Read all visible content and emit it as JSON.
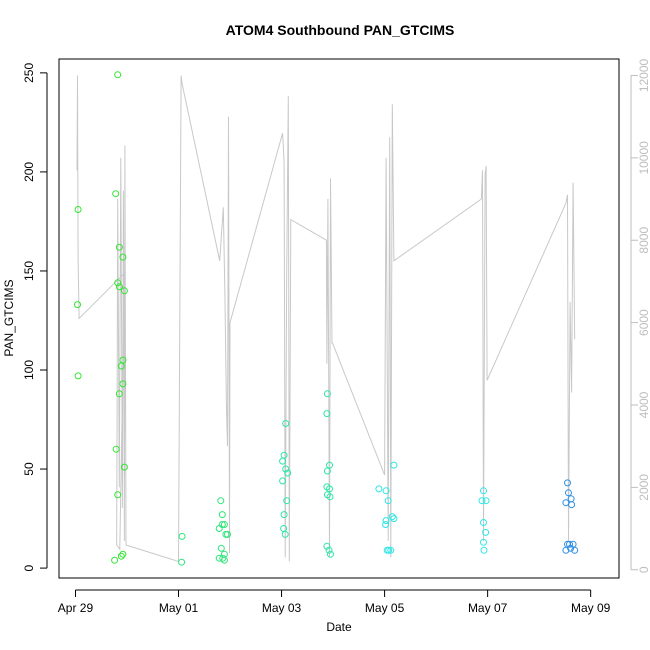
{
  "chart_data": {
    "type": "scatter",
    "title": "ATOM4 Southbound PAN_GTCIMS",
    "xlabel": "Date",
    "ylabel": "PAN_GTCIMS",
    "x_ticks": [
      {
        "label": "Apr 29",
        "day": 0
      },
      {
        "label": "May 01",
        "day": 2
      },
      {
        "label": "May 03",
        "day": 4
      },
      {
        "label": "May 05",
        "day": 6
      },
      {
        "label": "May 07",
        "day": 8
      },
      {
        "label": "May 09",
        "day": 10
      }
    ],
    "xlim_days": [
      -0.32,
      10.55
    ],
    "ylim": [
      -5,
      257
    ],
    "y_ticks": [
      0,
      50,
      100,
      150,
      200,
      250
    ],
    "y2lim": [
      -200,
      12400
    ],
    "y2_ticks": [
      0,
      2000,
      4000,
      6000,
      8000,
      10000,
      12000
    ],
    "y2_color": "#bebebe",
    "series": [
      {
        "color": "#32e632",
        "points": [
          [
            0.05,
            181
          ],
          [
            0.04,
            133
          ],
          [
            0.05,
            97
          ],
          [
            0.78,
            189
          ],
          [
            0.82,
            249
          ],
          [
            0.85,
            162
          ],
          [
            0.82,
            144
          ],
          [
            0.85,
            142
          ],
          [
            0.92,
            157
          ],
          [
            0.95,
            140
          ],
          [
            0.92,
            105
          ],
          [
            0.89,
            102
          ],
          [
            0.85,
            88
          ],
          [
            0.92,
            93
          ],
          [
            0.95,
            51
          ],
          [
            0.79,
            60
          ],
          [
            0.82,
            37
          ],
          [
            0.92,
            7
          ],
          [
            0.89,
            6
          ],
          [
            0.76,
            4
          ]
        ]
      },
      {
        "color": "#2ee67a",
        "points": [
          [
            2.07,
            16
          ],
          [
            2.06,
            3
          ],
          [
            2.82,
            34
          ],
          [
            2.79,
            20
          ],
          [
            2.85,
            22
          ],
          [
            2.89,
            22
          ],
          [
            2.92,
            17
          ],
          [
            2.85,
            27
          ],
          [
            2.89,
            7
          ],
          [
            2.83,
            10
          ],
          [
            2.86,
            5
          ],
          [
            2.89,
            4
          ],
          [
            2.95,
            17
          ],
          [
            2.79,
            5
          ]
        ]
      },
      {
        "color": "#2ee6a8",
        "points": [
          [
            4.08,
            73
          ],
          [
            4.05,
            57
          ],
          [
            4.02,
            54
          ],
          [
            4.08,
            50
          ],
          [
            4.12,
            48
          ],
          [
            4.02,
            44
          ],
          [
            4.1,
            34
          ],
          [
            4.05,
            27
          ],
          [
            4.04,
            20
          ],
          [
            4.07,
            17
          ],
          [
            4.89,
            88
          ],
          [
            4.88,
            78
          ],
          [
            4.93,
            52
          ],
          [
            4.89,
            49
          ],
          [
            4.88,
            41
          ],
          [
            4.93,
            40
          ],
          [
            4.89,
            37
          ],
          [
            4.94,
            36
          ],
          [
            4.88,
            11
          ],
          [
            4.92,
            9
          ],
          [
            4.95,
            7
          ]
        ]
      },
      {
        "color": "#2ee6e6",
        "points": [
          [
            5.89,
            40
          ],
          [
            6.03,
            39
          ],
          [
            6.07,
            34
          ],
          [
            6.18,
            52
          ],
          [
            6.03,
            24
          ],
          [
            6.02,
            22
          ],
          [
            6.15,
            26
          ],
          [
            6.18,
            25
          ],
          [
            6.05,
            9
          ],
          [
            6.08,
            9
          ],
          [
            6.12,
            9
          ],
          [
            7.92,
            39
          ],
          [
            7.89,
            34
          ],
          [
            7.97,
            34
          ],
          [
            7.96,
            18
          ],
          [
            7.92,
            23
          ],
          [
            7.92,
            13
          ],
          [
            7.93,
            9
          ]
        ]
      },
      {
        "color": "#2e8fe6",
        "points": [
          [
            9.55,
            43
          ],
          [
            9.57,
            38
          ],
          [
            9.62,
            35
          ],
          [
            9.52,
            33
          ],
          [
            9.63,
            32
          ],
          [
            9.55,
            12
          ],
          [
            9.59,
            12
          ],
          [
            9.66,
            12
          ],
          [
            9.52,
            9
          ],
          [
            9.61,
            10
          ],
          [
            9.69,
            9
          ]
        ]
      }
    ],
    "line_series": {
      "axis": "y2",
      "color": "#c8c8c8",
      "points": [
        [
          0.03,
          9700
        ],
        [
          0.04,
          12000
        ],
        [
          0.05,
          7500
        ],
        [
          0.07,
          6100
        ],
        [
          0.95,
          7200
        ],
        [
          0.86,
          500
        ],
        [
          0.8,
          600
        ],
        [
          0.82,
          9000
        ],
        [
          0.85,
          2000
        ],
        [
          0.88,
          10000
        ],
        [
          0.91,
          1500
        ],
        [
          0.93,
          9200
        ],
        [
          0.95,
          700
        ],
        [
          0.96,
          10300
        ],
        [
          0.98,
          600
        ],
        [
          2.0,
          200
        ],
        [
          2.05,
          12000
        ],
        [
          2.07,
          11800
        ],
        [
          2.8,
          7500
        ],
        [
          2.87,
          8800
        ],
        [
          2.9,
          6700
        ],
        [
          2.93,
          4000
        ],
        [
          2.95,
          3000
        ],
        [
          2.97,
          11000
        ],
        [
          2.99,
          400
        ],
        [
          3.0,
          6000
        ],
        [
          4.02,
          10600
        ],
        [
          4.05,
          9900
        ],
        [
          4.07,
          300
        ],
        [
          4.1,
          7200
        ],
        [
          4.13,
          11500
        ],
        [
          4.15,
          200
        ],
        [
          4.18,
          8500
        ],
        [
          4.87,
          8000
        ],
        [
          4.88,
          5000
        ],
        [
          4.9,
          9000
        ],
        [
          4.93,
          300
        ],
        [
          4.95,
          9500
        ],
        [
          4.98,
          5500
        ],
        [
          4.99,
          5500
        ],
        [
          6.0,
          2300
        ],
        [
          6.03,
          10000
        ],
        [
          6.07,
          700
        ],
        [
          6.1,
          10500
        ],
        [
          6.12,
          300
        ],
        [
          6.15,
          11300
        ],
        [
          6.18,
          7500
        ],
        [
          7.88,
          9000
        ],
        [
          7.9,
          9700
        ],
        [
          7.92,
          700
        ],
        [
          7.95,
          9600
        ],
        [
          7.97,
          9800
        ],
        [
          7.99,
          4600
        ],
        [
          7.99,
          4600
        ],
        [
          9.52,
          8900
        ],
        [
          9.55,
          9100
        ],
        [
          9.57,
          700
        ],
        [
          9.6,
          6500
        ],
        [
          9.63,
          4300
        ],
        [
          9.66,
          9400
        ],
        [
          9.69,
          5600
        ]
      ]
    }
  }
}
